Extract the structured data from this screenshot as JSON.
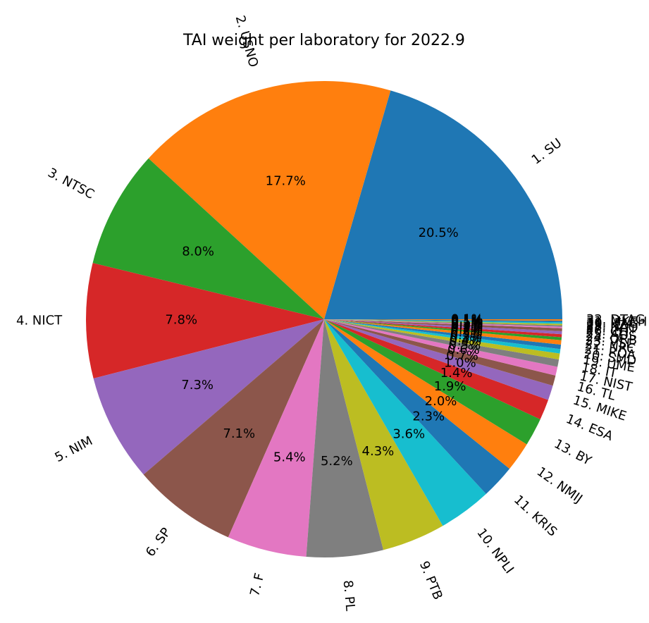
{
  "chart_data": {
    "type": "pie",
    "title": "TAI weight per laboratory for 2022.9",
    "categories": [
      "1. SU",
      "2. USNO",
      "3. NTSC",
      "4. NICT",
      "5. NIM",
      "6. SP",
      "7. F",
      "8. PL",
      "9. PTB",
      "10. NPLI",
      "11. KRIS",
      "12. NMIJ",
      "13. BY",
      "14. ESA",
      "15. MIKE",
      "16. TL",
      "17. NIST",
      "18. IT",
      "19. UME",
      "20. SMD",
      "21. ROA",
      "22. NRC",
      "23. VSL",
      "24. ORB",
      "25. AOS",
      "26. CH",
      "27. INTI",
      "28. NAO",
      "29. KZ",
      "30. IFAG",
      "31. MKEH",
      "32. DTAG"
    ],
    "values": [
      20.5,
      17.7,
      8.0,
      7.8,
      7.3,
      7.1,
      5.4,
      5.2,
      4.3,
      3.6,
      2.3,
      2.0,
      1.9,
      1.4,
      1.0,
      0.7,
      0.6,
      0.5,
      0.4,
      0.3,
      0.3,
      0.3,
      0.2,
      0.2,
      0.2,
      0.2,
      0.1,
      0.1,
      0.1,
      0.1,
      0.1,
      0.1
    ],
    "value_labels": [
      "20.5%",
      "17.7%",
      "8.0%",
      "7.8%",
      "7.3%",
      "7.1%",
      "5.4%",
      "5.2%",
      "4.3%",
      "3.6%",
      "2.3%",
      "2.0%",
      "1.9%",
      "1.4%",
      "1.0%",
      "0.7%",
      "0.6%",
      "0.5%",
      "0.4%",
      "0.3%",
      "0.3%",
      "0.3%",
      "0.2%",
      "0.2%",
      "0.2%",
      "0.2%",
      "0.1%",
      "0.1%",
      "0.1%",
      "0.1%",
      "0.1%",
      "0.1%"
    ],
    "colors": [
      "#1f77b4",
      "#ff7f0e",
      "#2ca02c",
      "#d62728",
      "#9467bd",
      "#8c564b",
      "#e377c2",
      "#7f7f7f",
      "#bcbd22",
      "#17becf"
    ],
    "start_angle": 0,
    "rotate_labels": true
  }
}
